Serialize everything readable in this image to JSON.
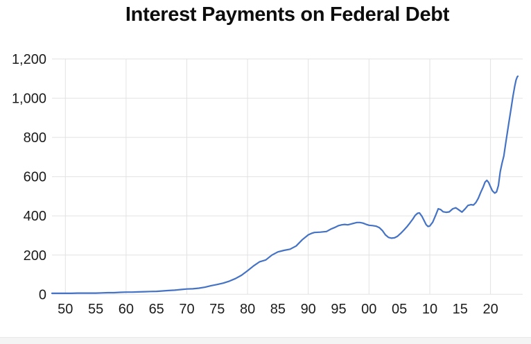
{
  "chart": {
    "title": "Interest Payments on Federal Debt",
    "line_color": "#4472c4",
    "grid_color": "#e2e2e2",
    "label_color": "#1b1b1b",
    "title_color": "#0d0d0d",
    "background_color": "#ffffff",
    "footer_bar_color": "#f4f4f5"
  },
  "chart_data": {
    "type": "line",
    "title": "Interest Payments on Federal Debt",
    "xlabel": "",
    "ylabel": "",
    "grid": true,
    "legend": false,
    "xlim": [
      1947.8,
      2025.3
    ],
    "ylim": [
      0,
      1200
    ],
    "y_ticks": [
      0,
      200,
      400,
      600,
      800,
      1000,
      1200
    ],
    "y_tick_labels": [
      "0",
      "200",
      "400",
      "600",
      "800",
      "1,000",
      "1,200"
    ],
    "x_tick_years": [
      1950,
      1955,
      1960,
      1965,
      1970,
      1975,
      1980,
      1985,
      1990,
      1995,
      2000,
      2005,
      2010,
      2015,
      2020
    ],
    "x_tick_labels": [
      "50",
      "55",
      "60",
      "65",
      "70",
      "75",
      "80",
      "85",
      "90",
      "95",
      "00",
      "05",
      "10",
      "15",
      "20"
    ],
    "x_grid_years": [
      1950,
      1960,
      1970,
      1980,
      1990,
      2000,
      2010,
      2020
    ],
    "series": [
      {
        "name": "Interest Payments on Federal Debt",
        "points": [
          [
            1947.8,
            5
          ],
          [
            1949,
            5
          ],
          [
            1950,
            5
          ],
          [
            1951,
            5
          ],
          [
            1952,
            6
          ],
          [
            1953,
            6
          ],
          [
            1954,
            6
          ],
          [
            1955,
            6
          ],
          [
            1956,
            7
          ],
          [
            1957,
            8
          ],
          [
            1958,
            8
          ],
          [
            1959,
            10
          ],
          [
            1960,
            11
          ],
          [
            1961,
            11
          ],
          [
            1962,
            12
          ],
          [
            1963,
            13
          ],
          [
            1964,
            14
          ],
          [
            1965,
            15
          ],
          [
            1966,
            17
          ],
          [
            1967,
            19
          ],
          [
            1968,
            21
          ],
          [
            1969,
            24
          ],
          [
            1970,
            27
          ],
          [
            1971,
            28
          ],
          [
            1972,
            31
          ],
          [
            1973,
            36
          ],
          [
            1974,
            44
          ],
          [
            1975,
            50
          ],
          [
            1976,
            57
          ],
          [
            1977,
            67
          ],
          [
            1978,
            80
          ],
          [
            1979,
            97
          ],
          [
            1980,
            120
          ],
          [
            1981,
            145
          ],
          [
            1982,
            166
          ],
          [
            1983,
            175
          ],
          [
            1984,
            200
          ],
          [
            1985,
            216
          ],
          [
            1986,
            224
          ],
          [
            1987,
            230
          ],
          [
            1988,
            246
          ],
          [
            1989,
            278
          ],
          [
            1990,
            303
          ],
          [
            1990.5,
            310
          ],
          [
            1991,
            315
          ],
          [
            1992,
            317
          ],
          [
            1993,
            320
          ],
          [
            1993.7,
            332
          ],
          [
            1994.3,
            340
          ],
          [
            1995,
            350
          ],
          [
            1995.5,
            354
          ],
          [
            1996,
            356
          ],
          [
            1996.5,
            354
          ],
          [
            1997,
            358
          ],
          [
            1997.5,
            362
          ],
          [
            1998,
            366
          ],
          [
            1998.5,
            366
          ],
          [
            1999,
            363
          ],
          [
            1999.5,
            357
          ],
          [
            2000,
            352
          ],
          [
            2000.6,
            350
          ],
          [
            2001.2,
            347
          ],
          [
            2001.7,
            340
          ],
          [
            2002.2,
            325
          ],
          [
            2002.7,
            303
          ],
          [
            2003.2,
            290
          ],
          [
            2003.7,
            286
          ],
          [
            2004.2,
            288
          ],
          [
            2004.7,
            296
          ],
          [
            2005.2,
            310
          ],
          [
            2005.7,
            326
          ],
          [
            2006.2,
            343
          ],
          [
            2006.7,
            362
          ],
          [
            2007.2,
            383
          ],
          [
            2007.6,
            402
          ],
          [
            2008,
            413
          ],
          [
            2008.3,
            415
          ],
          [
            2008.7,
            398
          ],
          [
            2009,
            380
          ],
          [
            2009.4,
            355
          ],
          [
            2009.7,
            346
          ],
          [
            2010,
            348
          ],
          [
            2010.5,
            368
          ],
          [
            2011,
            405
          ],
          [
            2011.4,
            436
          ],
          [
            2011.8,
            432
          ],
          [
            2012.2,
            421
          ],
          [
            2012.7,
            418
          ],
          [
            2013.2,
            420
          ],
          [
            2013.8,
            436
          ],
          [
            2014.3,
            441
          ],
          [
            2014.8,
            430
          ],
          [
            2015.3,
            419
          ],
          [
            2015.8,
            435
          ],
          [
            2016.3,
            453
          ],
          [
            2016.8,
            457
          ],
          [
            2017.2,
            455
          ],
          [
            2017.6,
            468
          ],
          [
            2018,
            490
          ],
          [
            2018.4,
            520
          ],
          [
            2018.8,
            548
          ],
          [
            2019.1,
            572
          ],
          [
            2019.4,
            581
          ],
          [
            2019.7,
            570
          ],
          [
            2020,
            548
          ],
          [
            2020.3,
            528
          ],
          [
            2020.7,
            516
          ],
          [
            2021,
            522
          ],
          [
            2021.3,
            555
          ],
          [
            2021.6,
            625
          ],
          [
            2021.9,
            668
          ],
          [
            2022.2,
            705
          ],
          [
            2022.5,
            770
          ],
          [
            2022.8,
            830
          ],
          [
            2023.1,
            890
          ],
          [
            2023.4,
            950
          ],
          [
            2023.7,
            1010
          ],
          [
            2024,
            1062
          ],
          [
            2024.2,
            1092
          ],
          [
            2024.4,
            1108
          ],
          [
            2024.5,
            1112
          ]
        ]
      }
    ]
  }
}
